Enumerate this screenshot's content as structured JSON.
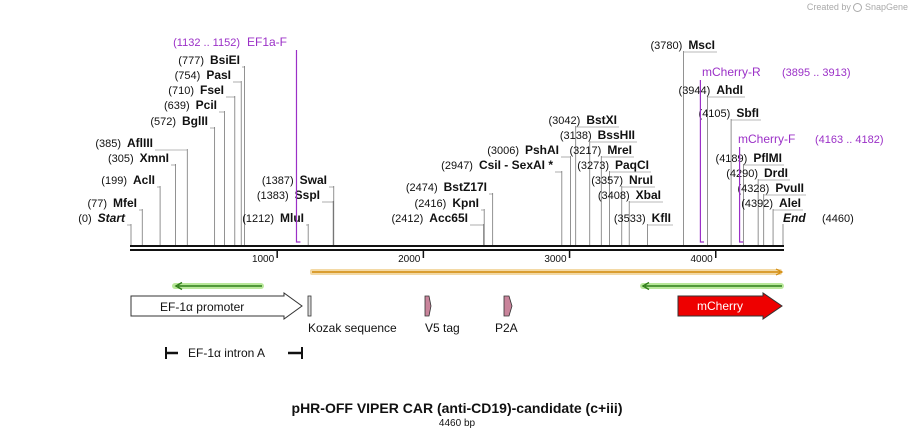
{
  "watermark": {
    "prefix": "Created by",
    "brand": "SnapGene"
  },
  "colors": {
    "primer": "#9b30c7",
    "orf": "#e0b020",
    "primer_arrow": "#2f7d1a",
    "primer_glow": "#b9e89a",
    "mcherry": "#ee0000",
    "feature_pink": "#c9849b"
  },
  "title": "pHR-OFF VIPER CAR (anti-CD19)-candidate (c+iii)",
  "length_label": "4460 bp",
  "sequence_length": 4460,
  "ruler": {
    "ticks": [
      {
        "pos": 1000,
        "label": "1000"
      },
      {
        "pos": 2000,
        "label": "2000"
      },
      {
        "pos": 3000,
        "label": "3000"
      },
      {
        "pos": 4000,
        "label": "4000"
      }
    ]
  },
  "sites": [
    {
      "name": "Start",
      "pos": 0,
      "coord": "(0)",
      "special": true
    },
    {
      "name": "MfeI",
      "pos": 77,
      "coord": "(77)"
    },
    {
      "name": "AclI",
      "pos": 199,
      "coord": "(199)"
    },
    {
      "name": "XmnI",
      "pos": 305,
      "coord": "(305)"
    },
    {
      "name": "AflIII",
      "pos": 385,
      "coord": "(385)"
    },
    {
      "name": "BglII",
      "pos": 572,
      "coord": "(572)"
    },
    {
      "name": "PciI",
      "pos": 639,
      "coord": "(639)"
    },
    {
      "name": "FseI",
      "pos": 710,
      "coord": "(710)"
    },
    {
      "name": "PasI",
      "pos": 754,
      "coord": "(754)"
    },
    {
      "name": "BsiEI",
      "pos": 777,
      "coord": "(777)"
    },
    {
      "name": "MluI",
      "pos": 1212,
      "coord": "(1212)"
    },
    {
      "name": "SspI",
      "pos": 1383,
      "coord": "(1383)"
    },
    {
      "name": "SwaI",
      "pos": 1387,
      "coord": "(1387)"
    },
    {
      "name": "Acc65I",
      "pos": 2412,
      "coord": "(2412)"
    },
    {
      "name": "KpnI",
      "pos": 2416,
      "coord": "(2416)"
    },
    {
      "name": "BstZ17I",
      "pos": 2474,
      "coord": "(2474)"
    },
    {
      "name": "CsiI  -  SexAI *",
      "pos": 2947,
      "coord": "(2947)"
    },
    {
      "name": "PshAI",
      "pos": 3006,
      "coord": "(3006)"
    },
    {
      "name": "BstXI",
      "pos": 3042,
      "coord": "(3042)"
    },
    {
      "name": "BssHII",
      "pos": 3138,
      "coord": "(3138)"
    },
    {
      "name": "MreI",
      "pos": 3217,
      "coord": "(3217)"
    },
    {
      "name": "PaqCI",
      "pos": 3273,
      "coord": "(3273)"
    },
    {
      "name": "NruI",
      "pos": 3357,
      "coord": "(3357)"
    },
    {
      "name": "XbaI",
      "pos": 3408,
      "coord": "(3408)"
    },
    {
      "name": "KflI",
      "pos": 3533,
      "coord": "(3533)"
    },
    {
      "name": "MscI",
      "pos": 3780,
      "coord": "(3780)"
    },
    {
      "name": "AhdI",
      "pos": 3944,
      "coord": "(3944)"
    },
    {
      "name": "SbfI",
      "pos": 4105,
      "coord": "(4105)"
    },
    {
      "name": "PflMI",
      "pos": 4189,
      "coord": "(4189)"
    },
    {
      "name": "DrdI",
      "pos": 4290,
      "coord": "(4290)"
    },
    {
      "name": "PvuII",
      "pos": 4328,
      "coord": "(4328)"
    },
    {
      "name": "AleI",
      "pos": 4392,
      "coord": "(4392)"
    },
    {
      "name": "End",
      "pos": 4460,
      "coord": "(4460)",
      "special": true
    }
  ],
  "primers": [
    {
      "name": "EF1a-F",
      "range": "(1132 .. 1152)",
      "start": 1132,
      "end": 1152
    },
    {
      "name": "mCherry-R",
      "range": "(3895 .. 3913)",
      "start": 3895,
      "end": 3913
    },
    {
      "name": "mCherry-F",
      "range": "(4163 .. 4182)",
      "start": 4163,
      "end": 4182
    }
  ],
  "features": [
    {
      "name": "EF-1α promoter",
      "start": 0,
      "end": 1180,
      "type": "promoter"
    },
    {
      "name": "Kozak sequence",
      "start": 1225,
      "end": 1240,
      "type": "small"
    },
    {
      "name": "V5 tag",
      "start": 2025,
      "end": 2065,
      "type": "tag"
    },
    {
      "name": "P2A",
      "start": 2545,
      "end": 2605,
      "type": "tag"
    },
    {
      "name": "mCherry",
      "start": 3740,
      "end": 4460,
      "type": "cds"
    },
    {
      "name": "EF-1α intron A",
      "start": 240,
      "end": 1180,
      "type": "intron"
    }
  ]
}
